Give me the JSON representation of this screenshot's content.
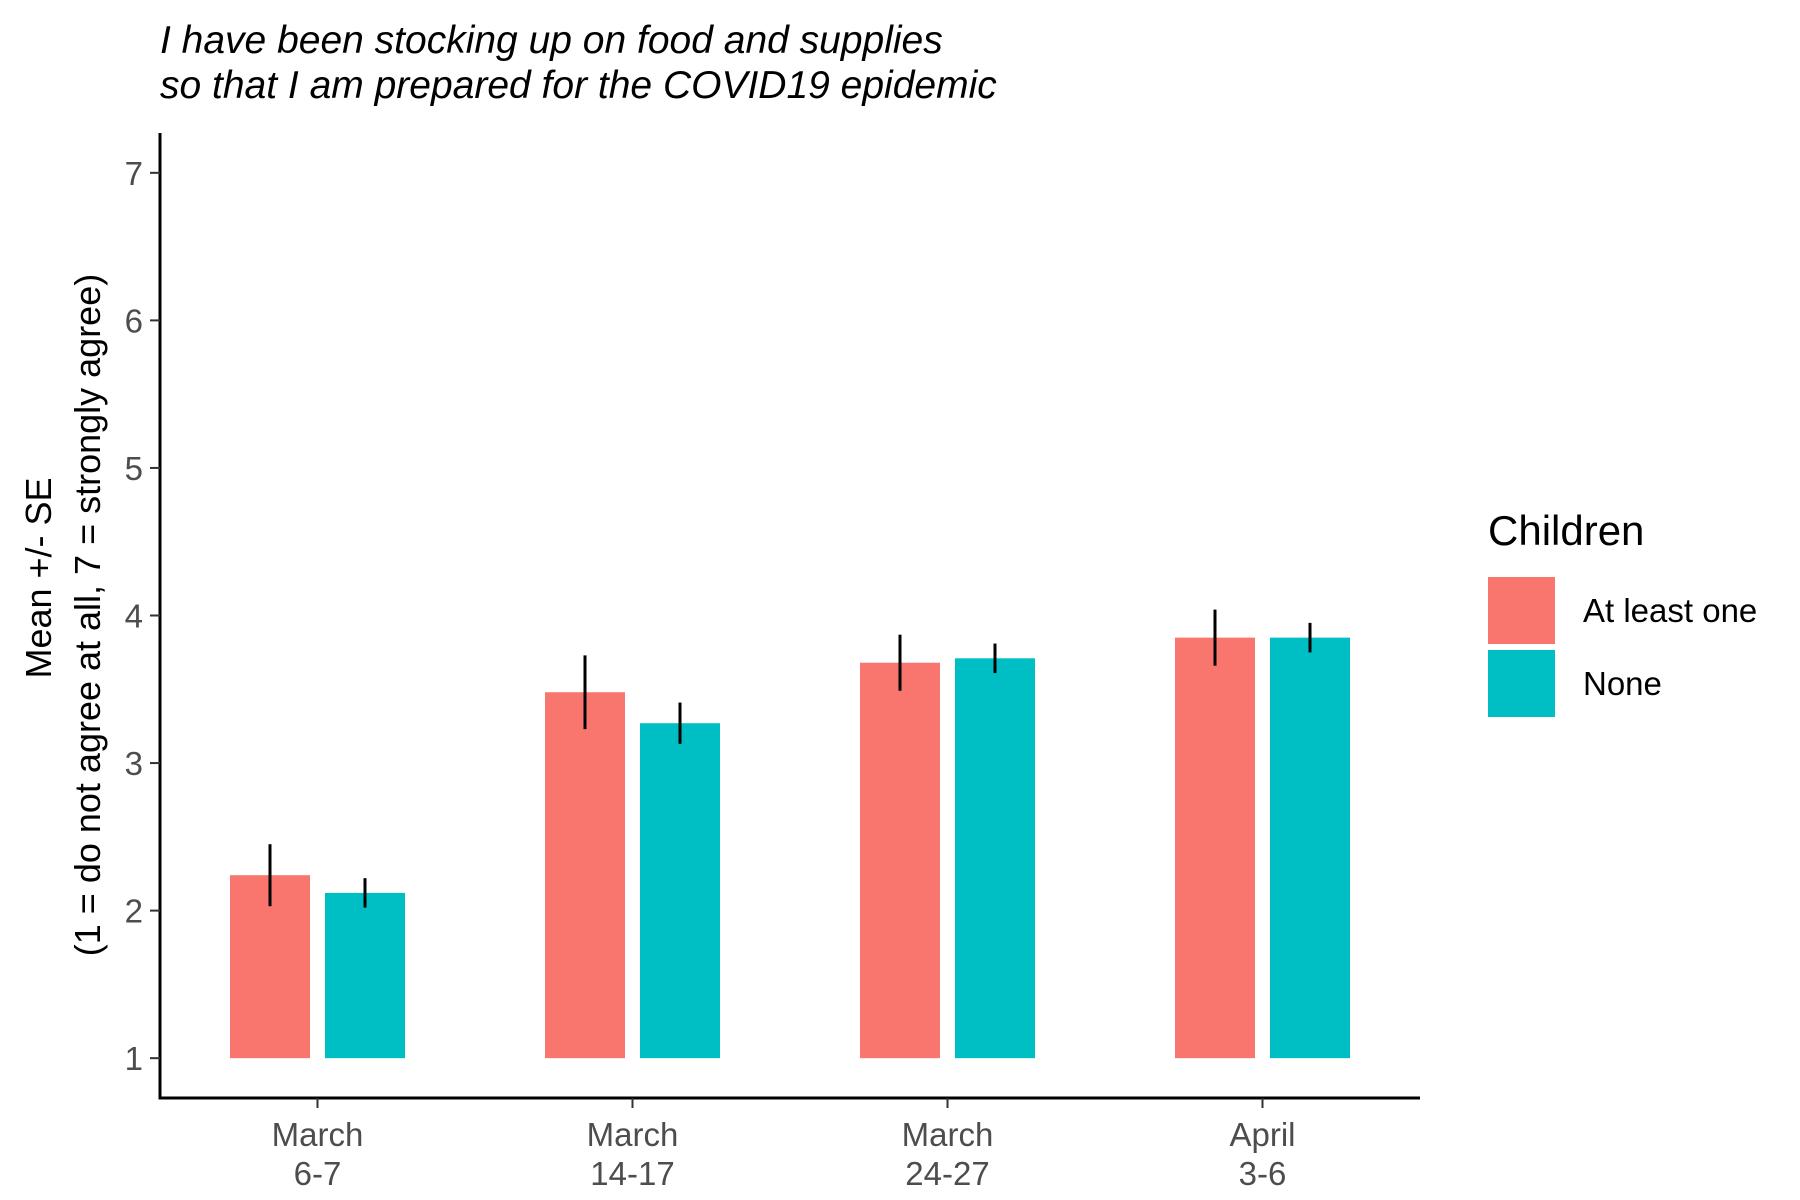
{
  "chart_data": {
    "type": "bar",
    "title_lines": [
      "I have been stocking up on food and supplies",
      "so that I am prepared for the COVID19 epidemic"
    ],
    "ylabel_lines": [
      "Mean +/- SE",
      "(1 = do not agree at all, 7 = strongly agree)"
    ],
    "xlabel": "",
    "categories": [
      [
        "March",
        "6-7"
      ],
      [
        "March",
        "14-17"
      ],
      [
        "March",
        "24-27"
      ],
      [
        "April",
        "3-6"
      ]
    ],
    "ylim": [
      0.73,
      7.27
    ],
    "y_ticks": [
      1,
      2,
      3,
      4,
      5,
      6,
      7
    ],
    "bar_base": 1,
    "legend": {
      "title": "Children",
      "placement": "right"
    },
    "series": [
      {
        "name": "At least one",
        "color": "#F8766D",
        "values": [
          2.24,
          3.48,
          3.68,
          3.85
        ],
        "se_low": [
          2.03,
          3.23,
          3.49,
          3.66
        ],
        "se_high": [
          2.45,
          3.73,
          3.87,
          4.04
        ]
      },
      {
        "name": "None",
        "color": "#00BFC4",
        "values": [
          2.12,
          3.27,
          3.71,
          3.85
        ],
        "se_low": [
          2.02,
          3.13,
          3.61,
          3.75
        ],
        "se_high": [
          2.22,
          3.41,
          3.81,
          3.95
        ]
      }
    ],
    "errorbar_color": "#000000",
    "grid": false
  }
}
